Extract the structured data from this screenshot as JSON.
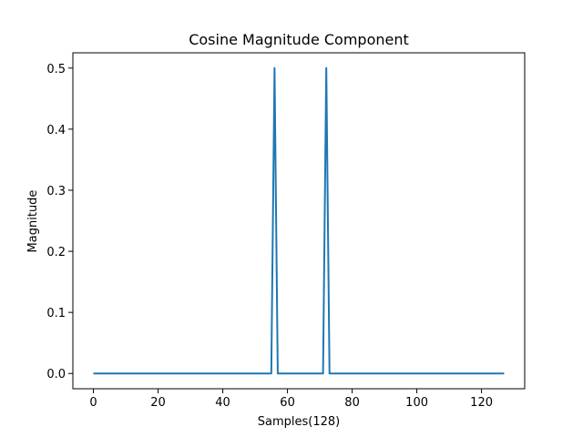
{
  "chart_data": {
    "type": "line",
    "title": "Cosine Magnitude Component",
    "xlabel": "Samples(128)",
    "ylabel": "Magnitude",
    "xlim": [
      -6.35,
      133.35
    ],
    "ylim": [
      -0.025,
      0.525
    ],
    "xticks": [
      0,
      20,
      40,
      60,
      80,
      100,
      120
    ],
    "yticks": [
      0.0,
      0.1,
      0.2,
      0.3,
      0.4,
      0.5
    ],
    "xtick_labels": [
      "0",
      "20",
      "40",
      "60",
      "80",
      "100",
      "120"
    ],
    "ytick_labels": [
      "0.0",
      "0.1",
      "0.2",
      "0.3",
      "0.4",
      "0.5"
    ],
    "grid": false,
    "legend": false,
    "series": [
      {
        "color": "#1f77b4",
        "x": [
          0,
          55,
          56,
          57,
          71,
          72,
          73,
          127
        ],
        "y": [
          0,
          0,
          0.5,
          0,
          0,
          0.5,
          0,
          0
        ]
      }
    ]
  }
}
